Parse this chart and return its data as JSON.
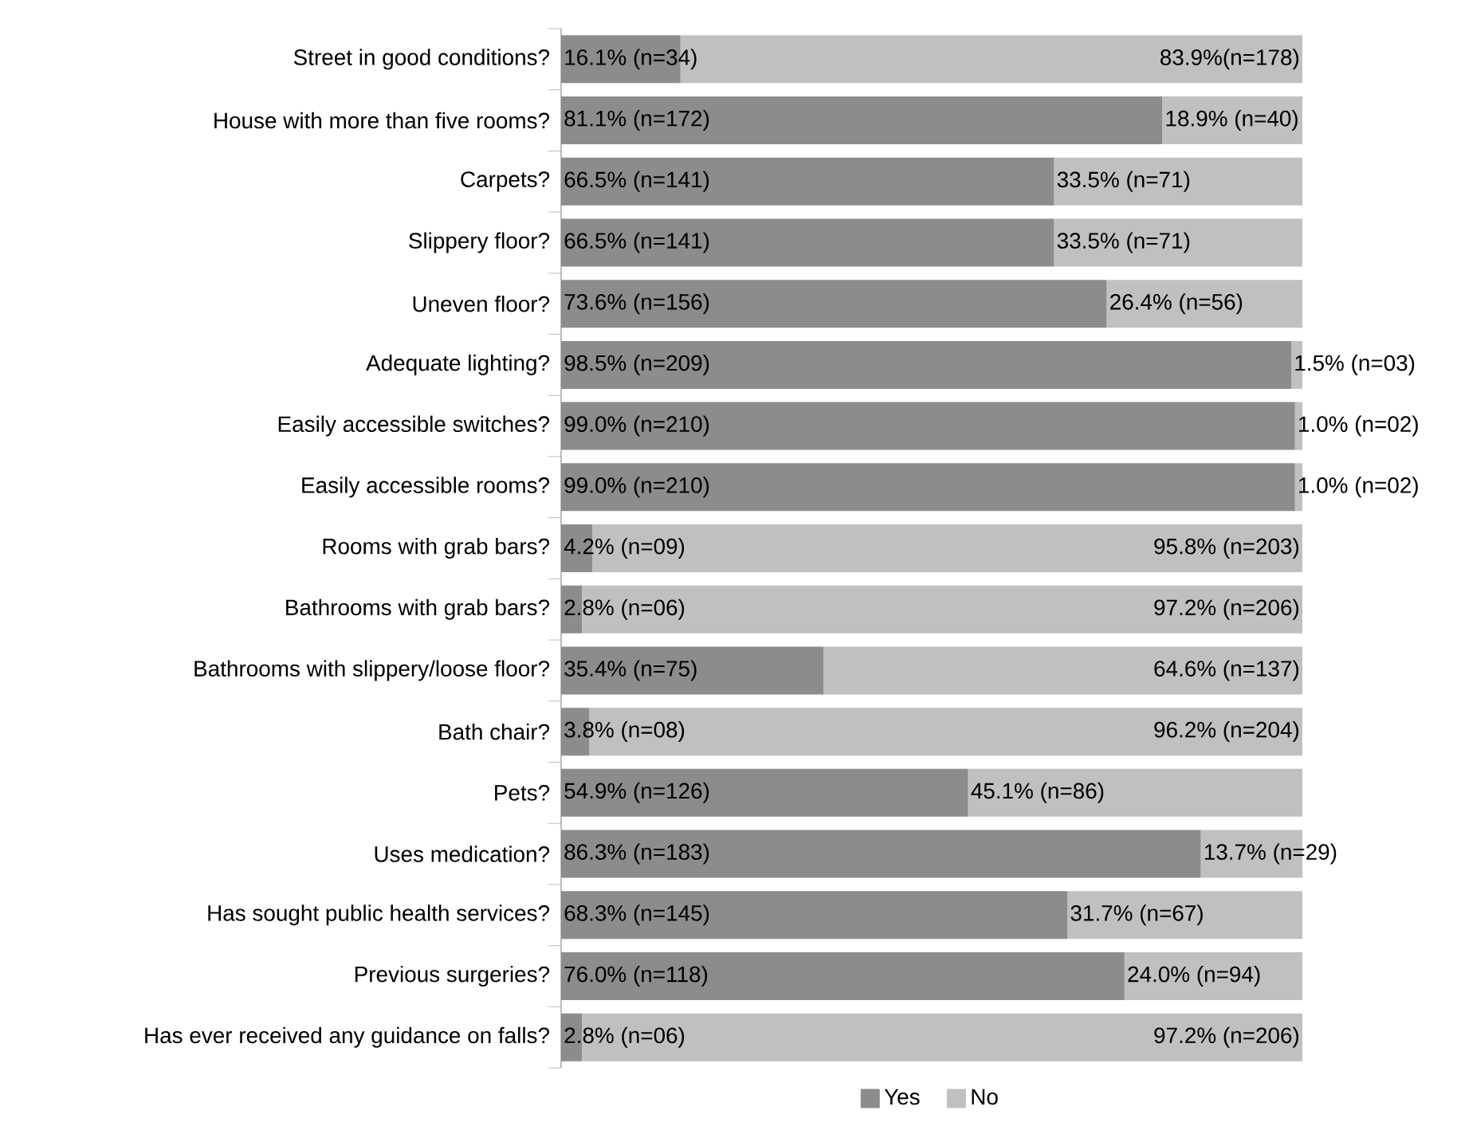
{
  "chart_data": {
    "type": "bar",
    "orientation": "horizontal",
    "stacked": true,
    "xlim": [
      0,
      100
    ],
    "tick_labels": "y",
    "legend": "bottom",
    "categories": [
      "Street in good conditions?",
      "House with more than five rooms?",
      "Carpets?",
      "Slippery floor?",
      "Uneven floor?",
      "Adequate lighting?",
      "Easily accessible switches?",
      "Easily accessible rooms?",
      "Rooms with grab bars?",
      "Bathrooms with grab bars?",
      "Bathrooms with slippery/loose floor?",
      "Bath chair?",
      "Pets?",
      "Uses medication?",
      "Has sought public health services?",
      "Previous surgeries?",
      "Has ever received any guidance on falls?"
    ],
    "series": [
      {
        "name": "Yes",
        "color": "#8c8c8c",
        "values": [
          16.1,
          81.1,
          66.5,
          66.5,
          73.6,
          98.5,
          99.0,
          99.0,
          4.2,
          2.8,
          35.4,
          3.8,
          54.9,
          86.3,
          68.3,
          76.0,
          2.8
        ],
        "value_labels": [
          "16.1% (n=34)",
          "81.1% (n=172)",
          "66.5% (n=141)",
          "66.5% (n=141)",
          "73.6% (n=156)",
          "98.5% (n=209)",
          "99.0% (n=210)",
          "99.0% (n=210)",
          "4.2% (n=09)",
          "2.8% (n=06)",
          "35.4% (n=75)",
          "3.8% (n=08)",
          "54.9% (n=126)",
          "86.3% (n=183)",
          "68.3% (n=145)",
          "76.0% (n=118)",
          "2.8% (n=06)"
        ]
      },
      {
        "name": "No",
        "color": "#c0c0c0",
        "values": [
          83.9,
          18.9,
          33.5,
          33.5,
          26.4,
          1.5,
          1.0,
          1.0,
          95.8,
          97.2,
          64.6,
          96.2,
          45.1,
          13.7,
          31.7,
          24.0,
          97.2
        ],
        "value_labels": [
          "83.9%(n=178)",
          "18.9% (n=40)",
          "33.5% (n=71)",
          "33.5% (n=71)",
          "26.4% (n=56)",
          "1.5% (n=03)",
          "1.0% (n=02)",
          "1.0% (n=02)",
          "95.8% (n=203)",
          "97.2% (n=206)",
          "64.6% (n=137)",
          "96.2% (n=204)",
          "45.1% (n=86)",
          "13.7% (n=29)",
          "31.7% (n=67)",
          "24.0% (n=94)",
          "97.2% (n=206)"
        ]
      }
    ]
  }
}
